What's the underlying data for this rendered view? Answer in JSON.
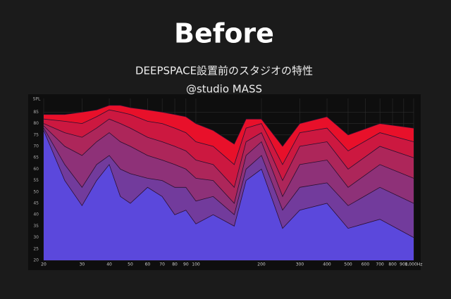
{
  "chart_data": {
    "type": "area",
    "title": "Before",
    "subtitle": "DEEPSPACE設置前のスタジオの特性",
    "annotation": "@studio MASS",
    "ylabel": "SPL",
    "xscale": "log",
    "grid": true,
    "x": [
      20,
      25,
      30,
      35,
      40,
      45,
      50,
      60,
      70,
      80,
      90,
      100,
      120,
      150,
      170,
      200,
      250,
      300,
      400,
      500,
      700,
      1000
    ],
    "xlim": [
      20,
      1000
    ],
    "xticks": [
      20,
      30,
      40,
      50,
      60,
      70,
      80,
      90,
      100,
      200,
      300,
      400,
      500,
      600,
      700,
      800,
      900,
      {
        "value": 1000,
        "label": "1,000Hz"
      }
    ],
    "ylim": [
      20,
      91
    ],
    "yticks": [
      20,
      25,
      30,
      35,
      40,
      45,
      50,
      55,
      60,
      65,
      70,
      75,
      80,
      85
    ],
    "series": [
      {
        "color": "#e8102a",
        "values": [
          84,
          84,
          85,
          86,
          88,
          88,
          87,
          86,
          85,
          84,
          83,
          80,
          77,
          71,
          82,
          82,
          70,
          80,
          83,
          75,
          80,
          78
        ]
      },
      {
        "color": "#cc1840",
        "values": [
          82,
          81,
          80,
          83,
          86,
          85,
          84,
          81,
          80,
          78,
          76,
          72,
          70,
          62,
          78,
          80,
          62,
          76,
          78,
          68,
          76,
          72
        ]
      },
      {
        "color": "#ad265a",
        "values": [
          80,
          76,
          74,
          78,
          82,
          80,
          78,
          74,
          72,
          70,
          68,
          64,
          62,
          52,
          72,
          76,
          55,
          70,
          72,
          60,
          70,
          65
        ]
      },
      {
        "color": "#8e3178",
        "values": [
          79,
          70,
          66,
          72,
          76,
          72,
          70,
          66,
          64,
          62,
          60,
          56,
          55,
          45,
          66,
          72,
          48,
          62,
          64,
          52,
          62,
          56
        ]
      },
      {
        "color": "#723b9c",
        "values": [
          78,
          62,
          52,
          62,
          66,
          60,
          58,
          56,
          55,
          52,
          52,
          46,
          48,
          40,
          60,
          66,
          42,
          52,
          54,
          44,
          52,
          45
        ]
      },
      {
        "color": "#5b48dc",
        "values": [
          77,
          55,
          44,
          55,
          62,
          48,
          45,
          52,
          48,
          40,
          42,
          36,
          40,
          35,
          55,
          60,
          34,
          42,
          45,
          34,
          38,
          30
        ]
      }
    ]
  }
}
